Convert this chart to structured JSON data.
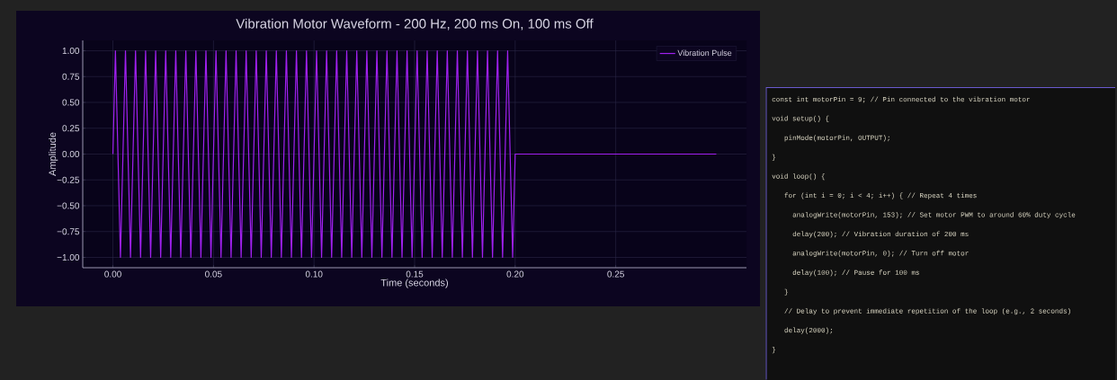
{
  "chart_data": {
    "type": "line",
    "title": "Vibration Motor Waveform - 200 Hz, 200 ms On, 100 ms Off",
    "xlabel": "Time (seconds)",
    "ylabel": "Amplitude",
    "x": [
      0,
      0.00125,
      0.00375,
      0.00625,
      0.00875,
      0.01125,
      0.01375,
      0.01625,
      0.01875,
      0.02125,
      0.02375,
      0.02625,
      0.02875,
      0.03125,
      0.03375,
      0.03625,
      0.03875,
      0.04125,
      0.04375,
      0.04625,
      0.04875,
      0.05125,
      0.05375,
      0.05625,
      0.05875,
      0.06125,
      0.06375,
      0.06625,
      0.06875,
      0.07125,
      0.07375,
      0.07625,
      0.07875,
      0.08125,
      0.08375,
      0.08625,
      0.08875,
      0.09125,
      0.09375,
      0.09625,
      0.09875,
      0.10125,
      0.10375,
      0.10625,
      0.10875,
      0.11125,
      0.11375,
      0.11625,
      0.11875,
      0.12125,
      0.12375,
      0.12625,
      0.12875,
      0.13125,
      0.13375,
      0.13625,
      0.13875,
      0.14125,
      0.14375,
      0.14625,
      0.14875,
      0.15125,
      0.15375,
      0.15625,
      0.15875,
      0.16125,
      0.16375,
      0.16625,
      0.16875,
      0.17125,
      0.17375,
      0.17625,
      0.17875,
      0.18125,
      0.18375,
      0.18625,
      0.18875,
      0.19125,
      0.19375,
      0.19625,
      0.19875,
      0.2,
      0.3
    ],
    "series": [
      {
        "name": "Vibration Pulse",
        "color": "#a020f0",
        "values": [
          0,
          1,
          -1,
          1,
          -1,
          1,
          -1,
          1,
          -1,
          1,
          -1,
          1,
          -1,
          1,
          -1,
          1,
          -1,
          1,
          -1,
          1,
          -1,
          1,
          -1,
          1,
          -1,
          1,
          -1,
          1,
          -1,
          1,
          -1,
          1,
          -1,
          1,
          -1,
          1,
          -1,
          1,
          -1,
          1,
          -1,
          1,
          -1,
          1,
          -1,
          1,
          -1,
          1,
          -1,
          1,
          -1,
          1,
          -1,
          1,
          -1,
          1,
          -1,
          1,
          -1,
          1,
          -1,
          1,
          -1,
          1,
          -1,
          1,
          -1,
          1,
          -1,
          1,
          -1,
          1,
          -1,
          1,
          -1,
          1,
          -1,
          1,
          -1,
          1,
          -1,
          0,
          0
        ]
      }
    ],
    "xlim": [
      -0.015,
      0.315
    ],
    "ylim": [
      -1.1,
      1.1
    ],
    "xticks": [
      {
        "value": 0,
        "label": "0.00"
      },
      {
        "value": 0.05,
        "label": "0.05"
      },
      {
        "value": 0.1,
        "label": "0.10"
      },
      {
        "value": 0.15,
        "label": "0.15"
      },
      {
        "value": 0.2,
        "label": "0.20"
      },
      {
        "value": 0.25,
        "label": "0.25"
      }
    ],
    "yticks": [
      {
        "value": -1,
        "label": "−1.00"
      },
      {
        "value": -0.75,
        "label": "−0.75"
      },
      {
        "value": -0.5,
        "label": "−0.50"
      },
      {
        "value": -0.25,
        "label": "−0.25"
      },
      {
        "value": 0,
        "label": "0.00"
      },
      {
        "value": 0.25,
        "label": "0.25"
      },
      {
        "value": 0.5,
        "label": "0.50"
      },
      {
        "value": 0.75,
        "label": "0.75"
      },
      {
        "value": 1,
        "label": "1.00"
      }
    ],
    "grid": true,
    "legend": "top right",
    "line_style": "solid",
    "annotations": [
      "const int motorPin = 9;  // Pin connected to the vibration motor",
      "void setup() {",
      "  pinMode(motorPin, OUTPUT);",
      "}",
      "void loop() {",
      "  for (int i = 0; i < 4; i++) {  // Repeat 4 times",
      "    analogWrite(motorPin, 153);  // Set motor PWM to around 60% duty cycle",
      "    delay(200);  // Vibration duration of 200 ms",
      "    analogWrite(motorPin, 0);  // Turn off motor",
      "    delay(100);  // Pause for 100 ms",
      "  }",
      "  // Delay to prevent immediate repetition of the loop (e.g., 2 seconds)",
      "  delay(2000);",
      "}"
    ]
  }
}
